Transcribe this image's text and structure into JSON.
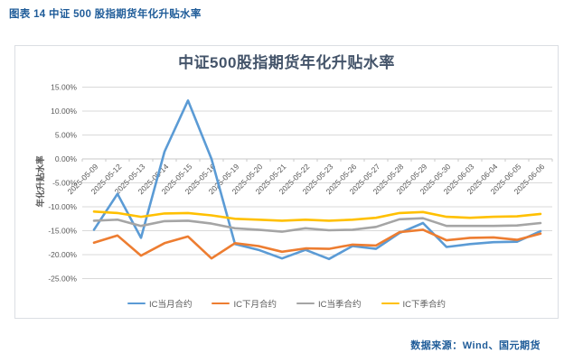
{
  "header": {
    "caption": "图表 14 中证 500 股指期货年化升贴水率"
  },
  "source": {
    "text": "数据来源：Wind、国元期货"
  },
  "chart_data": {
    "type": "line",
    "title": "中证500股指期货年化升贴水率",
    "xlabel": "",
    "ylabel": "年化升贴水率",
    "ylim": [
      -25,
      15
    ],
    "grid": true,
    "legend_position": "bottom",
    "y_ticks": [
      15,
      10,
      5,
      0,
      -5,
      -10,
      -15,
      -20,
      -25
    ],
    "y_tick_labels": [
      "15.00%",
      "10.00%",
      "5.00%",
      "0.00%",
      "-5.00%",
      "-10.00%",
      "-15.00%",
      "-20.00%",
      "-25.00%"
    ],
    "categories": [
      "2025-05-09",
      "2025-05-12",
      "2025-05-13",
      "2025-05-14",
      "2025-05-15",
      "2025-05-16",
      "2025-05-19",
      "2025-05-20",
      "2025-05-21",
      "2025-05-22",
      "2025-05-23",
      "2025-05-26",
      "2025-05-27",
      "2025-05-28",
      "2025-05-29",
      "2025-05-30",
      "2025-06-03",
      "2025-06-04",
      "2025-06-05",
      "2025-06-06"
    ],
    "series": [
      {
        "name": "IC当月合约",
        "color": "#5B9BD5",
        "values": [
          -14.8,
          -7.3,
          -16.5,
          1.5,
          12.2,
          0.0,
          -17.8,
          -19.0,
          -20.8,
          -19.0,
          -20.9,
          -18.2,
          -18.8,
          -15.5,
          -13.4,
          -18.4,
          -17.8,
          -17.4,
          -17.3,
          -15.1
        ]
      },
      {
        "name": "IC下月合约",
        "color": "#ED7D31",
        "values": [
          -17.5,
          -16.0,
          -20.2,
          -17.6,
          -16.2,
          -20.8,
          -17.6,
          -18.2,
          -19.4,
          -18.7,
          -18.8,
          -17.9,
          -18.1,
          -15.3,
          -14.8,
          -17.0,
          -16.5,
          -16.4,
          -16.9,
          -15.6
        ]
      },
      {
        "name": "IC当季合约",
        "color": "#A5A5A5",
        "values": [
          -12.9,
          -12.7,
          -14.0,
          -13.0,
          -12.9,
          -13.5,
          -14.5,
          -14.8,
          -15.2,
          -14.5,
          -14.9,
          -14.8,
          -14.2,
          -12.6,
          -12.4,
          -14.0,
          -14.0,
          -14.0,
          -13.9,
          -13.4
        ]
      },
      {
        "name": "IC下季合约",
        "color": "#FFC000",
        "values": [
          -11.0,
          -11.3,
          -12.1,
          -11.4,
          -11.3,
          -11.8,
          -12.5,
          -12.7,
          -12.9,
          -12.7,
          -12.9,
          -12.7,
          -12.3,
          -11.3,
          -11.1,
          -12.1,
          -12.3,
          -12.1,
          -12.0,
          -11.5
        ]
      }
    ],
    "colors": {
      "caption_text": "#1F5C99",
      "title_text": "#44546A",
      "axis_text": "#595959",
      "gridline": "#D9D9D9",
      "axis_line": "#C9C9C9",
      "box_border": "#DBDEE3"
    }
  }
}
